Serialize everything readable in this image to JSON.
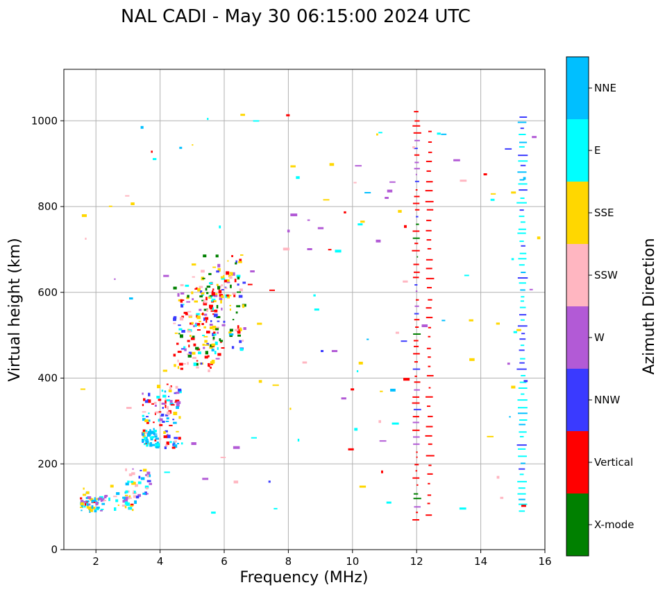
{
  "chart_data": {
    "type": "scatter",
    "title": "NAL CADI - May 30 06:15:00 2024 UTC",
    "xlabel": "Frequency (MHz)",
    "ylabel": "Virtual height (km)",
    "xlim": [
      1,
      16
    ],
    "ylim": [
      0,
      1120
    ],
    "xticks": [
      2,
      4,
      6,
      8,
      10,
      12,
      14,
      16
    ],
    "yticks": [
      0,
      200,
      400,
      600,
      800,
      1000
    ],
    "grid": true,
    "colorbar": {
      "label": "Azimuth Direction",
      "categories": [
        {
          "name": "X-mode",
          "color": "#008000"
        },
        {
          "name": "Vertical",
          "color": "#ff0000"
        },
        {
          "name": "NNW",
          "color": "#3a3aff"
        },
        {
          "name": "W",
          "color": "#b25ad6"
        },
        {
          "name": "SSW",
          "color": "#ffb6c1"
        },
        {
          "name": "SSE",
          "color": "#ffd700"
        },
        {
          "name": "E",
          "color": "#00ffff"
        },
        {
          "name": "NNE",
          "color": "#00bfff"
        }
      ]
    },
    "seed": 7,
    "clusters": [
      {
        "f": [
          1.5,
          2.2
        ],
        "h": [
          88,
          125
        ],
        "n": 45,
        "colors": [
          "NNE",
          "NNE",
          "E",
          "SSE",
          "Vertical",
          "W"
        ]
      },
      {
        "f": [
          1.5,
          1.7
        ],
        "h": [
          100,
          145
        ],
        "n": 8,
        "colors": [
          "SSE",
          "NNE"
        ]
      },
      {
        "f": [
          2.2,
          3.2
        ],
        "h": [
          95,
          140
        ],
        "n": 30,
        "colors": [
          "SSE",
          "SSW",
          "Vertical",
          "W",
          "E",
          "NNE"
        ]
      },
      {
        "f": [
          2.9,
          3.7
        ],
        "h": [
          110,
          190
        ],
        "n": 35,
        "colors": [
          "E",
          "W",
          "SSW",
          "SSE",
          "NNW",
          "NNE"
        ]
      },
      {
        "f": [
          3.4,
          4.6
        ],
        "h": [
          240,
          390
        ],
        "n": 110,
        "colors": [
          "Vertical",
          "Vertical",
          "Vertical",
          "NNE",
          "NNE",
          "NNW",
          "NNW",
          "W",
          "E",
          "SSE",
          "SSW"
        ]
      },
      {
        "f": [
          3.4,
          3.9
        ],
        "h": [
          240,
          280
        ],
        "n": 30,
        "colors": [
          "NNE",
          "NNE",
          "E"
        ]
      },
      {
        "f": [
          4.4,
          5.9
        ],
        "h": [
          420,
          620
        ],
        "n": 150,
        "colors": [
          "Vertical",
          "Vertical",
          "Vertical",
          "SSE",
          "SSE",
          "SSW",
          "SSW",
          "W",
          "NNW",
          "E",
          "X-mode"
        ]
      },
      {
        "f": [
          5.2,
          6.6
        ],
        "h": [
          470,
          690
        ],
        "n": 120,
        "colors": [
          "X-mode",
          "X-mode",
          "Vertical",
          "Vertical",
          "SSE",
          "SSE",
          "SSW",
          "W",
          "NNW",
          "E"
        ]
      }
    ],
    "lines": [
      {
        "f": 12.0,
        "h": [
          70,
          1020
        ],
        "n": 60,
        "colors": [
          "Vertical",
          "Vertical",
          "Vertical",
          "W",
          "X-mode",
          "NNW"
        ],
        "w": 1.5
      },
      {
        "f": 12.4,
        "h": [
          85,
          975
        ],
        "n": 40,
        "colors": [
          "Vertical",
          "Vertical",
          "Vertical"
        ],
        "w": 2.5
      },
      {
        "f": 15.3,
        "h": [
          90,
          1010
        ],
        "n": 65,
        "colors": [
          "E",
          "E",
          "E",
          "NNW",
          "NNW",
          "NNE"
        ],
        "w": 5
      }
    ],
    "scatter": {
      "n": 130,
      "f": [
        1.5,
        15.8
      ],
      "h": [
        80,
        1030
      ],
      "colors": [
        "SSE",
        "SSE",
        "E",
        "E",
        "W",
        "W",
        "SSW",
        "SSW",
        "NNW",
        "Vertical",
        "NNE"
      ]
    }
  }
}
